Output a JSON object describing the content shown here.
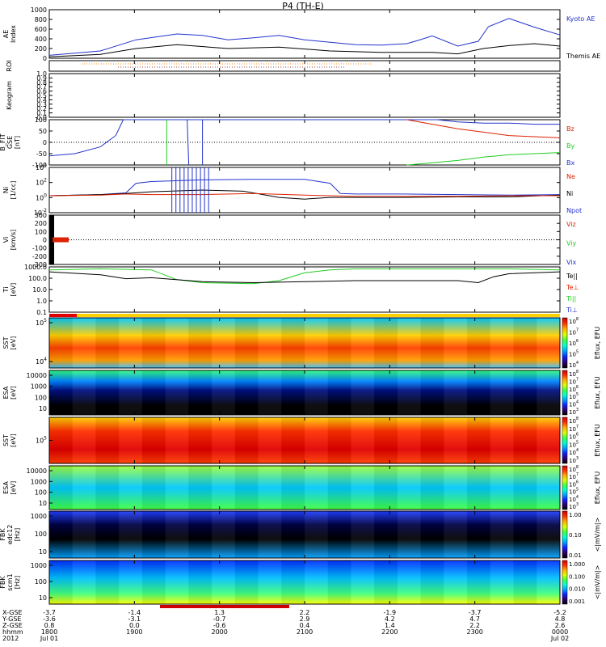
{
  "title": "P4 (TH-E)",
  "colors": {
    "blue": "#2233cc",
    "red": "#dd2200",
    "green": "#22cc22",
    "black": "#000000",
    "orange": "#ff8800"
  },
  "chart_data": [
    {
      "type": "line",
      "panel": "ae",
      "ylabel": "AE Index",
      "ylim": [
        0,
        1000
      ],
      "yticks": [
        "0",
        "200",
        "400",
        "600",
        "800",
        "1000"
      ],
      "legend": [
        "Kyoto AE",
        "Themis AE"
      ],
      "series": [
        {
          "name": "Kyoto AE",
          "color": "blue",
          "x": [
            0,
            0.1,
            0.17,
            0.25,
            0.3,
            0.35,
            0.4,
            0.45,
            0.5,
            0.55,
            0.6,
            0.65,
            0.7,
            0.72,
            0.75,
            0.8,
            0.84,
            0.86,
            0.9,
            0.95,
            1.0
          ],
          "values": [
            60,
            150,
            380,
            500,
            470,
            380,
            420,
            470,
            380,
            330,
            280,
            270,
            300,
            360,
            460,
            250,
            350,
            650,
            820,
            640,
            480
          ]
        },
        {
          "name": "Themis AE",
          "color": "black",
          "x": [
            0,
            0.1,
            0.17,
            0.25,
            0.35,
            0.45,
            0.55,
            0.65,
            0.75,
            0.8,
            0.85,
            0.9,
            0.95,
            1.0
          ],
          "values": [
            30,
            80,
            200,
            280,
            200,
            230,
            150,
            120,
            120,
            90,
            200,
            260,
            300,
            250
          ]
        }
      ]
    },
    {
      "type": "line",
      "panel": "roi",
      "ylabel": "ROI"
    },
    {
      "type": "line",
      "panel": "keogram",
      "ylabel": "Keogram",
      "ylim": [
        0,
        1
      ],
      "yticks": [
        "0.0",
        "0.1",
        "0.2",
        "0.3",
        "0.4",
        "0.5",
        "0.6",
        "0.7",
        "0.8",
        "0.9",
        "1.0"
      ]
    },
    {
      "type": "line",
      "panel": "bfit",
      "ylabel": "B_FIT GSE [nT]",
      "ylim": [
        -100,
        100
      ],
      "yticks": [
        "-100",
        "-50",
        "0",
        "50",
        "100"
      ],
      "legend": [
        "Bz",
        "By",
        "Bx"
      ],
      "series": [
        {
          "name": "Bx",
          "color": "blue",
          "x": [
            0,
            0.05,
            0.1,
            0.13,
            0.145,
            0.76,
            0.8,
            0.85,
            0.9,
            0.95,
            1.0
          ],
          "values": [
            -60,
            -50,
            -20,
            30,
            100,
            100,
            90,
            85,
            85,
            80,
            80
          ]
        },
        {
          "name": "By",
          "color": "green",
          "x": [
            0.7,
            0.75,
            0.8,
            0.85,
            0.9,
            0.95,
            1.0
          ],
          "values": [
            -100,
            -90,
            -80,
            -65,
            -55,
            -50,
            -45
          ]
        },
        {
          "name": "Bz",
          "color": "red",
          "x": [
            0.7,
            0.75,
            0.8,
            0.85,
            0.9,
            0.95,
            1.0
          ],
          "values": [
            100,
            80,
            60,
            45,
            30,
            25,
            20
          ]
        }
      ]
    },
    {
      "type": "line",
      "panel": "density",
      "ylabel": "Ni [1/cc]",
      "ylog": true,
      "yticks": [
        "10^-2",
        "10^0",
        "10^2",
        "10^4"
      ],
      "legend": [
        "Ne",
        "Ni",
        "Npot"
      ],
      "series": [
        {
          "name": "Npot",
          "color": "blue",
          "x": [
            0,
            0.1,
            0.15,
            0.17,
            0.2,
            0.3,
            0.4,
            0.5,
            0.55,
            0.57,
            0.6,
            0.7,
            0.8,
            0.9,
            1.0
          ],
          "values": [
            0,
            0.2,
            0.5,
            2.2,
            2.5,
            2.8,
            2.9,
            2.9,
            2.2,
            0.4,
            0.3,
            0.3,
            0.2,
            0.1,
            0.2
          ]
        },
        {
          "name": "Ni",
          "color": "black",
          "x": [
            0,
            0.1,
            0.15,
            0.2,
            0.3,
            0.38,
            0.45,
            0.5,
            0.55,
            0.6,
            0.7,
            0.8,
            0.9,
            1.0
          ],
          "values": [
            0,
            0.2,
            0.4,
            0.7,
            1.0,
            0.8,
            -0.3,
            -0.6,
            -0.3,
            -0.3,
            -0.3,
            -0.2,
            -0.2,
            0.1
          ]
        },
        {
          "name": "Ne",
          "color": "red",
          "x": [
            0,
            0.1,
            0.15,
            0.2,
            0.3,
            0.4,
            0.5,
            0.6,
            0.7,
            0.8,
            0.9,
            1.0
          ],
          "values": [
            0,
            0.1,
            0.3,
            0.2,
            0.2,
            0.4,
            0.1,
            -0.1,
            -0.1,
            -0.1,
            0.0,
            0.0
          ]
        }
      ]
    },
    {
      "type": "line",
      "panel": "velocity",
      "ylabel": "Vi [km/s]",
      "ylim": [
        -300,
        300
      ],
      "yticks": [
        "-300",
        "-200",
        "-100",
        "0",
        "100",
        "200",
        "300"
      ],
      "legend": [
        "Viz",
        "Viy",
        "Vix"
      ]
    },
    {
      "type": "line",
      "panel": "temperature",
      "ylabel": "Ti [eV]",
      "ylog": true,
      "yticks": [
        "0.1",
        "1.0",
        "10.0",
        "100.0",
        "1000.0"
      ],
      "legend": [
        "Te||",
        "Te⊥",
        "Ti||",
        "Ti⊥"
      ],
      "series": [
        {
          "name": "Ti||",
          "color": "green",
          "x": [
            0,
            0.1,
            0.2,
            0.25,
            0.3,
            0.4,
            0.45,
            0.5,
            0.55,
            0.6,
            0.7,
            0.8,
            0.9,
            1.0
          ],
          "values": [
            3.3,
            3.4,
            3.3,
            2.3,
            2.0,
            1.9,
            2.2,
            3.0,
            3.3,
            3.4,
            3.4,
            3.4,
            3.4,
            3.3
          ]
        },
        {
          "name": "Te||",
          "color": "black",
          "x": [
            0,
            0.1,
            0.15,
            0.2,
            0.3,
            0.4,
            0.5,
            0.6,
            0.7,
            0.8,
            0.84,
            0.87,
            0.9,
            1.0
          ],
          "values": [
            3.1,
            2.8,
            2.4,
            2.5,
            2.1,
            2.0,
            2.1,
            2.2,
            2.2,
            2.2,
            2.0,
            2.6,
            2.9,
            3.1
          ]
        }
      ]
    },
    {
      "type": "heatmap",
      "panel": "sst_i",
      "ylabel": "SST [eV]",
      "ylog": true,
      "yticks": [
        "10^4",
        "10^5"
      ],
      "colorbar_label": "Eflux, EFU",
      "colorbar_ticks": [
        "10^4",
        "10^5",
        "10^6",
        "10^7",
        "10^8"
      ]
    },
    {
      "type": "heatmap",
      "panel": "esa_i",
      "ylabel": "ESA [eV]",
      "yticks": [
        "10",
        "100",
        "1000",
        "10000"
      ],
      "colorbar_label": "Eflux, EFU",
      "colorbar_ticks": [
        "10^3",
        "10^4",
        "10^5",
        "10^6",
        "10^7",
        "10^8"
      ]
    },
    {
      "type": "heatmap",
      "panel": "sst_e",
      "ylabel": "SST [eV]",
      "yticks": [
        "10^5"
      ],
      "colorbar_label": "Eflux, EFU",
      "colorbar_ticks": [
        "10^3",
        "10^4",
        "10^5",
        "10^6",
        "10^7",
        "10^8"
      ]
    },
    {
      "type": "heatmap",
      "panel": "esa_e",
      "ylabel": "ESA [eV]",
      "yticks": [
        "10",
        "100",
        "1000",
        "10000"
      ],
      "colorbar_label": "Eflux, EFU",
      "colorbar_ticks": [
        "10^3",
        "10^4",
        "10^5",
        "10^6",
        "10^7",
        "10^8"
      ]
    },
    {
      "type": "heatmap",
      "panel": "fbk_e",
      "ylabel": "FBK edc12 [Hz]",
      "yticks": [
        "10",
        "100",
        "1000"
      ],
      "colorbar_label": "<|mV/m|>",
      "colorbar_ticks": [
        "0.01",
        "0.10",
        "1.00"
      ]
    },
    {
      "type": "heatmap",
      "panel": "fbk_b",
      "ylabel": "FBK scm1 [Hz]",
      "yticks": [
        "10",
        "100",
        "1000"
      ],
      "colorbar_label": "<|mV/m|>",
      "colorbar_ticks": [
        "0.001",
        "0.010",
        "0.100",
        "1.000"
      ]
    }
  ],
  "xaxis": {
    "row_labels": [
      "X-GSE",
      "Y-GSE",
      "Z-GSE",
      "hhmm",
      "2012"
    ],
    "columns": [
      {
        "rows": [
          "-3.7",
          "-3.6",
          "0.8",
          "1800",
          "Jul 01"
        ]
      },
      {
        "rows": [
          "-1.4",
          "-3.1",
          "0.0",
          "1900",
          ""
        ]
      },
      {
        "rows": [
          "1.3",
          "-0.7",
          "-0.6",
          "2000",
          ""
        ]
      },
      {
        "rows": [
          "2.2",
          "2.9",
          "0.4",
          "2100",
          ""
        ]
      },
      {
        "rows": [
          "-1.9",
          "4.2",
          "1.4",
          "2200",
          ""
        ]
      },
      {
        "rows": [
          "-3.7",
          "4.7",
          "2.2",
          "2300",
          ""
        ]
      },
      {
        "rows": [
          "-5.2",
          "4.8",
          "2.6",
          "0000",
          "Jul 02"
        ]
      }
    ]
  }
}
